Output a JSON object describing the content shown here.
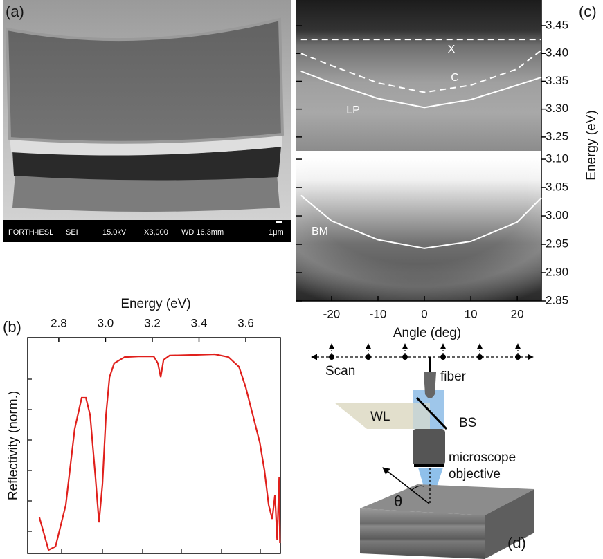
{
  "panel_labels": [
    "(a)",
    "(b)",
    "(c)",
    "(d)"
  ],
  "sem_caption": [
    "FORTH-IESL",
    "SEI",
    "15.0kV",
    "X3,000",
    "WD 16.3mm",
    "1μm"
  ],
  "schematic": {
    "scan": "Scan",
    "fiber": "fiber",
    "wl": "WL",
    "bs": "BS",
    "objective": [
      "microscope",
      "objective"
    ],
    "angle": "θ"
  },
  "chart_data": [
    {
      "type": "line",
      "x": [
        -26.6,
        -20,
        -10,
        0,
        10,
        20,
        25.2
      ],
      "series": [
        {
          "name": "X",
          "color": "#ffffff",
          "linestyle": "dashed",
          "values": [
            3.425,
            3.425,
            3.425,
            3.425,
            3.425,
            3.425,
            3.425
          ]
        },
        {
          "name": "C",
          "color": "#ffffff",
          "linestyle": "dashed",
          "values": [
            3.4,
            3.378,
            3.347,
            3.33,
            3.343,
            3.372,
            3.406
          ]
        },
        {
          "name": "LP",
          "color": "#ffffff",
          "linestyle": "solid",
          "values": [
            3.368,
            3.347,
            3.319,
            3.303,
            3.317,
            3.343,
            3.357
          ]
        }
      ],
      "xlim": [
        -27.6,
        25.2
      ],
      "ylim": [
        3.225,
        3.496
      ],
      "yticks": [
        3.25,
        {
          "value": 3.3,
          "label": "3.30"
        },
        3.35,
        {
          "value": 3.4,
          "label": "3.40"
        },
        3.45
      ]
    },
    {
      "type": "line",
      "x": [
        -26.6,
        -20,
        -10,
        0,
        10,
        20,
        25.2
      ],
      "series": [
        {
          "name": "BM",
          "color": "#ffffff",
          "linestyle": "solid",
          "values": [
            3.036,
            2.991,
            2.958,
            2.943,
            2.955,
            2.989,
            3.032
          ]
        }
      ],
      "xlim": [
        -27.6,
        25.2
      ],
      "ylim": [
        2.85,
        3.1025
      ],
      "xticks": [
        -20,
        -10,
        0,
        10,
        20
      ],
      "yticks": [
        2.85,
        {
          "value": 2.9,
          "label": "2.90"
        },
        2.95,
        {
          "value": 3,
          "label": "3.00"
        },
        3.05,
        {
          "value": 3.1,
          "label": "3.10"
        }
      ],
      "xlabel": "Angle (deg)",
      "ylabel": "Energy (eV)"
    },
    {
      "type": "line",
      "x": [
        2.717,
        2.756,
        2.786,
        2.83,
        2.868,
        2.898,
        2.916,
        2.934,
        2.957,
        2.972,
        2.987,
        3.002,
        3.017,
        3.037,
        3.082,
        3.141,
        3.206,
        3.224,
        3.236,
        3.248,
        3.274,
        3.378,
        3.467,
        3.526,
        3.571,
        3.6,
        3.63,
        3.66,
        3.68,
        3.698,
        3.713,
        3.725,
        3.734,
        3.743,
        3.746
      ],
      "values": [
        0.167,
        0.016,
        0.032,
        0.224,
        0.577,
        0.721,
        0.721,
        0.641,
        0.353,
        0.144,
        0.321,
        0.641,
        0.817,
        0.881,
        0.91,
        0.913,
        0.913,
        0.881,
        0.817,
        0.897,
        0.917,
        0.92,
        0.923,
        0.91,
        0.865,
        0.769,
        0.641,
        0.513,
        0.385,
        0.224,
        0.16,
        0.272,
        0.064,
        0.353,
        0.048
      ],
      "color": "#e0201c",
      "xlim": [
        2.667,
        3.748
      ],
      "ylim": [
        0,
        1
      ],
      "xticks": [
        2.8,
        {
          "value": 3,
          "label": "3.0"
        },
        3.2,
        3.4,
        3.6
      ],
      "xlabel": "Energy (eV)",
      "ylabel": "Reflectivity (norm.)"
    }
  ]
}
